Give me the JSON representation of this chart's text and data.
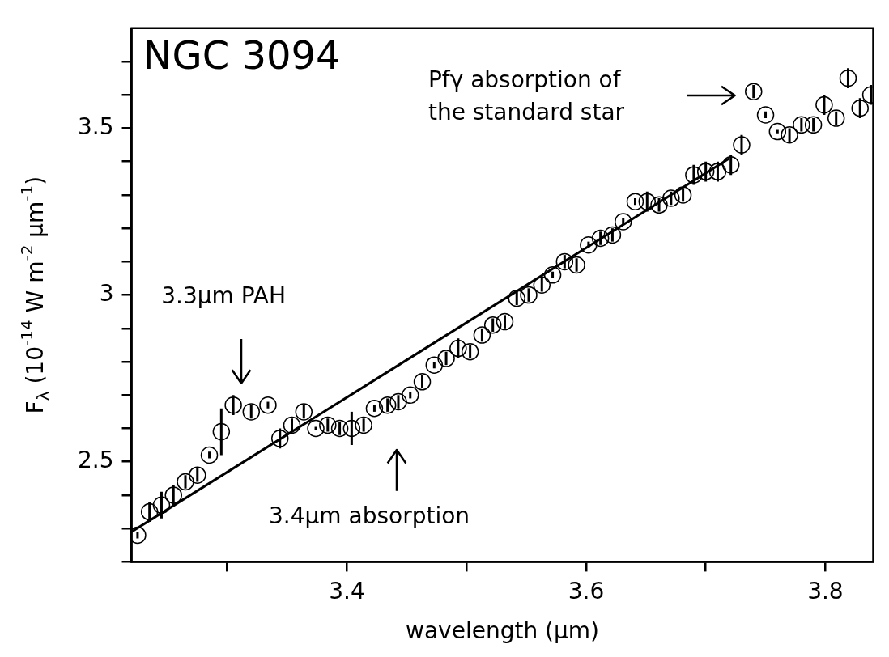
{
  "chart_data": {
    "type": "scatter",
    "title": "NGC 3094",
    "xlabel": "wavelength (μm)",
    "ylabel": "F$_{λ}$ (10$^{-14}$ W m$^{-2}$ μm$^{-1}$)",
    "xlim": [
      3.22,
      3.84
    ],
    "ylim": [
      2.2,
      3.8
    ],
    "xticks": [
      {
        "value": 3.3,
        "label": null
      },
      3.4,
      {
        "value": 3.5,
        "label": null
      },
      3.6,
      {
        "value": 3.7,
        "label": null
      },
      3.8
    ],
    "yticks": [
      {
        "value": 2.2,
        "label": null
      },
      {
        "value": 2.3,
        "label": null
      },
      {
        "value": 2.4,
        "label": null
      },
      2.5,
      {
        "value": 2.6,
        "label": null
      },
      {
        "value": 2.7,
        "label": null
      },
      {
        "value": 2.8,
        "label": null
      },
      {
        "value": 2.9,
        "label": null
      },
      3,
      {
        "value": 3.1,
        "label": null
      },
      {
        "value": 3.2,
        "label": null
      },
      {
        "value": 3.3,
        "label": null
      },
      {
        "value": 3.4,
        "label": null
      },
      3.5,
      {
        "value": 3.6,
        "label": null
      },
      {
        "value": 3.7,
        "label": null
      }
    ],
    "series": [
      {
        "type": "scatter",
        "color": "#000000",
        "marker": "circle",
        "x": [
          3.225,
          3.235,
          3.245,
          3.255,
          3.265,
          3.275,
          3.285,
          3.295,
          3.305,
          3.32,
          3.334,
          3.344,
          3.354,
          3.364,
          3.374,
          3.384,
          3.394,
          3.404,
          3.414,
          3.423,
          3.434,
          3.443,
          3.453,
          3.463,
          3.473,
          3.483,
          3.493,
          3.503,
          3.513,
          3.522,
          3.532,
          3.542,
          3.552,
          3.563,
          3.572,
          3.582,
          3.592,
          3.602,
          3.612,
          3.622,
          3.631,
          3.641,
          3.651,
          3.661,
          3.671,
          3.681,
          3.69,
          3.7,
          3.71,
          3.721,
          3.73,
          3.74,
          3.75,
          3.76,
          3.77,
          3.78,
          3.79,
          3.799,
          3.809,
          3.819,
          3.829,
          3.838
        ],
        "values": [
          2.28,
          2.35,
          2.37,
          2.4,
          2.44,
          2.46,
          2.52,
          2.59,
          2.67,
          2.65,
          2.67,
          2.57,
          2.61,
          2.65,
          2.6,
          2.61,
          2.6,
          2.6,
          2.61,
          2.66,
          2.67,
          2.68,
          2.7,
          2.74,
          2.79,
          2.81,
          2.84,
          2.83,
          2.88,
          2.91,
          2.92,
          2.99,
          3,
          3.03,
          3.06,
          3.1,
          3.09,
          3.15,
          3.17,
          3.18,
          3.22,
          3.28,
          3.28,
          3.27,
          3.29,
          3.3,
          3.36,
          3.37,
          3.37,
          3.39,
          3.45,
          3.61,
          3.54,
          3.49,
          3.48,
          3.51,
          3.51,
          3.57,
          3.53,
          3.65,
          3.56,
          3.6
        ],
        "errors": [
          0.01,
          0.03,
          0.04,
          0.03,
          0.02,
          0.02,
          0.01,
          0.07,
          0.03,
          0.02,
          0.01,
          0.03,
          0.02,
          0.02,
          0.005,
          0.02,
          0.02,
          0.05,
          0.02,
          0.01,
          0.02,
          0.02,
          0.01,
          0.02,
          0.01,
          0.02,
          0.03,
          0.02,
          0.02,
          0.02,
          0.02,
          0.02,
          0.02,
          0.02,
          0.01,
          0.02,
          0.02,
          0.01,
          0.02,
          0.02,
          0.01,
          0.01,
          0.03,
          0.02,
          0.02,
          0.02,
          0.03,
          0.03,
          0.03,
          0.03,
          0.03,
          0.02,
          0.01,
          0.005,
          0.02,
          0.02,
          0.02,
          0.03,
          0.02,
          0.03,
          0.03,
          0.03
        ]
      },
      {
        "type": "line",
        "color": "#000000",
        "marker": "none",
        "line_style": "solid",
        "x": [
          3.22,
          3.72
        ],
        "values": [
          2.29,
          3.41
        ]
      }
    ],
    "annotations": [
      "3.3μm PAH",
      "3.4μm absorption",
      "Pfγ absorption of the standard star"
    ]
  }
}
